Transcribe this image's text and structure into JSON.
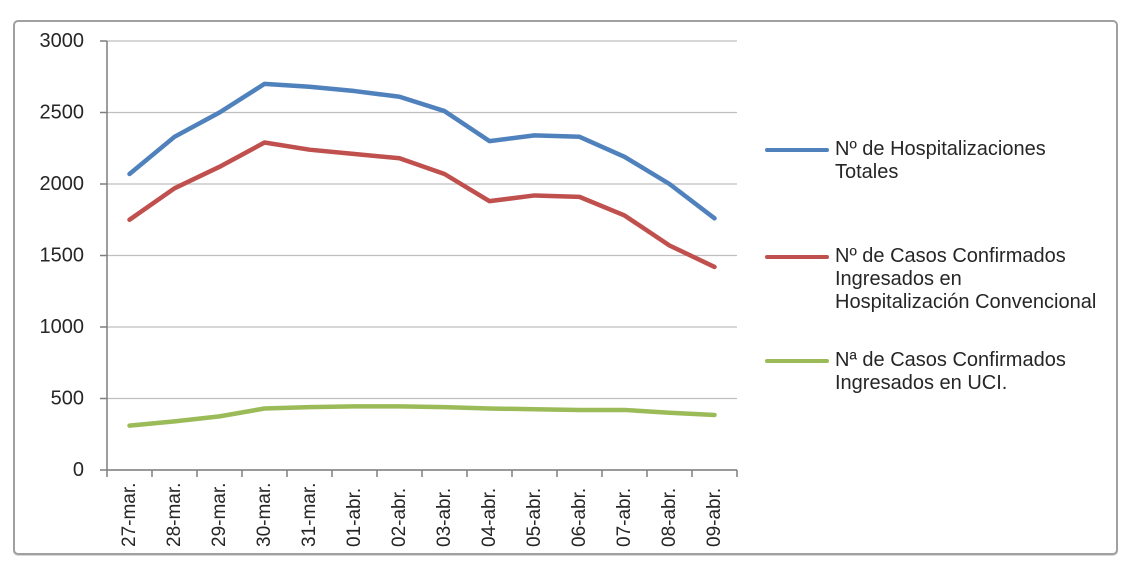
{
  "chart_data": {
    "type": "line",
    "title": "",
    "xlabel": "",
    "ylabel": "",
    "categories": [
      "27-mar.",
      "28-mar.",
      "29-mar.",
      "30-mar.",
      "31-mar.",
      "01-abr.",
      "02-abr.",
      "03-abr.",
      "04-abr.",
      "05-abr.",
      "06-abr.",
      "07-abr.",
      "08-abr.",
      "09-abr."
    ],
    "series": [
      {
        "name": "Nº de Hospitalizaciones Totales",
        "color": "#4F81BD",
        "values": [
          2070,
          2330,
          2500,
          2700,
          2680,
          2650,
          2610,
          2510,
          2300,
          2340,
          2330,
          2190,
          2000,
          1760
        ]
      },
      {
        "name": "Nº de Casos Confirmados Ingresados en Hospitalización Convencional",
        "color": "#C0504D",
        "values": [
          1750,
          1970,
          2120,
          2290,
          2240,
          2210,
          2180,
          2070,
          1880,
          1920,
          1910,
          1780,
          1570,
          1420
        ]
      },
      {
        "name": "Nª de Casos Confirmados Ingresados en UCI.",
        "color": "#9BBB59",
        "values": [
          310,
          340,
          375,
          430,
          440,
          445,
          445,
          440,
          430,
          425,
          420,
          420,
          400,
          385
        ]
      }
    ],
    "ylim": [
      0,
      3000
    ],
    "yticks": [
      0,
      500,
      1000,
      1500,
      2000,
      2500,
      3000
    ],
    "grid": true,
    "legend_position": "right"
  },
  "colors": {
    "gridline": "#bfbfbf",
    "axis": "#7f7f7f",
    "text": "#262626",
    "frame_border": "#a0a0a0",
    "background": "#ffffff"
  }
}
